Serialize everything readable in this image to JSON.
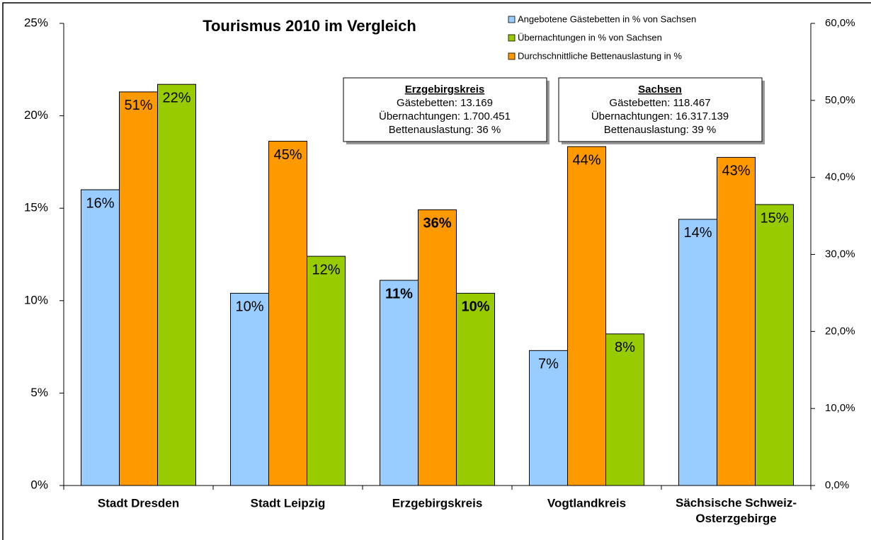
{
  "chart_data": {
    "type": "bar",
    "title": "Tourismus 2010 im Vergleich",
    "categories": [
      "Stadt Dresden",
      "Stadt Leipzig",
      "Erzgebirgskreis",
      "Vogtlandkreis",
      "Sächsische Schweiz-Osterzgebirge"
    ],
    "series": [
      {
        "name": "Angebotene Gästebetten in % von Sachsen",
        "color": "#99ccff",
        "values": [
          16,
          10.4,
          11.1,
          7.3,
          14.4
        ],
        "value_labels": [
          "16%",
          "10%",
          "11%",
          "7%",
          "14%"
        ]
      },
      {
        "name": "Übernachtungen in % von Sachsen",
        "color": "#99cc00",
        "values": [
          21.7,
          12.4,
          10.4,
          8.2,
          15.2
        ],
        "value_labels": [
          "22%",
          "12%",
          "10%",
          "8%",
          "15%"
        ]
      },
      {
        "name": "Durchschnittliche Bettenauslastung in %",
        "color": "#ff9900",
        "axis": "y2",
        "values": [
          51.1,
          44.7,
          35.8,
          44,
          42.6
        ],
        "value_labels": [
          "51%",
          "45%",
          "36%",
          "44%",
          "43%"
        ]
      }
    ],
    "ylim": [
      0,
      25
    ],
    "yticks": [
      {
        "value": 0,
        "label": "0%"
      },
      {
        "value": 5,
        "label": "5%"
      },
      {
        "value": 10,
        "label": "10%"
      },
      {
        "value": 15,
        "label": "15%"
      },
      {
        "value": 20,
        "label": "20%"
      },
      {
        "value": 25,
        "label": "25%"
      }
    ],
    "y2lim": [
      0,
      60
    ],
    "y2ticks": [
      {
        "value": 0,
        "label": "0,0%"
      },
      {
        "value": 10,
        "label": "10,0%"
      },
      {
        "value": 20,
        "label": "20,0%"
      },
      {
        "value": 30,
        "label": "30,0%"
      },
      {
        "value": 40,
        "label": "40,0%"
      },
      {
        "value": 50,
        "label": "50,0%"
      },
      {
        "value": 60,
        "label": "60,0%"
      }
    ],
    "annotations": [
      {
        "title": "Erzgebirgskreis",
        "lines": [
          "Gästebetten: 13.169",
          "Übernachtungen:  1.700.451",
          "Bettenauslastung: 36 %"
        ]
      },
      {
        "title": "Sachsen",
        "lines": [
          "Gästebetten: 118.467",
          "Übernachtungen:  16.317.139",
          "Bettenauslastung: 39 %"
        ]
      }
    ]
  }
}
